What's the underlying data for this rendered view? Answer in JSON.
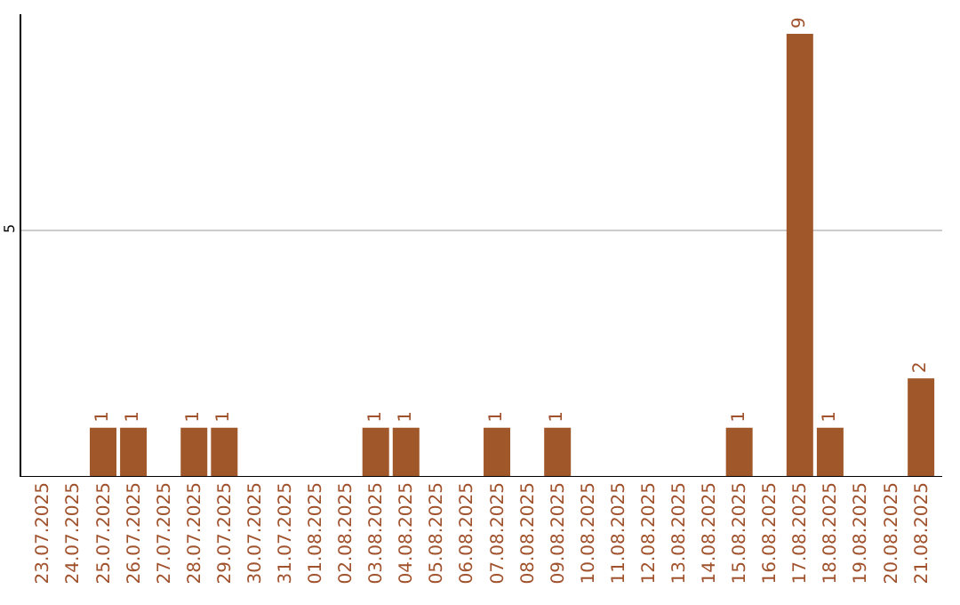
{
  "chart_data": {
    "type": "bar",
    "categories": [
      "23.07.2025",
      "24.07.2025",
      "25.07.2025",
      "26.07.2025",
      "27.07.2025",
      "28.07.2025",
      "29.07.2025",
      "30.07.2025",
      "31.07.2025",
      "01.08.2025",
      "02.08.2025",
      "03.08.2025",
      "04.08.2025",
      "05.08.2025",
      "06.08.2025",
      "07.08.2025",
      "08.08.2025",
      "09.08.2025",
      "10.08.2025",
      "11.08.2025",
      "12.08.2025",
      "13.08.2025",
      "14.08.2025",
      "15.08.2025",
      "16.08.2025",
      "17.08.2025",
      "18.08.2025",
      "19.08.2025",
      "20.08.2025",
      "21.08.2025"
    ],
    "values": [
      0,
      0,
      1,
      1,
      0,
      1,
      1,
      0,
      0,
      0,
      0,
      1,
      1,
      0,
      0,
      1,
      0,
      1,
      0,
      0,
      0,
      0,
      0,
      1,
      0,
      9,
      1,
      0,
      0,
      2
    ],
    "value_labels": [
      null,
      null,
      "1",
      "1",
      null,
      "1",
      "1",
      null,
      null,
      null,
      null,
      "1",
      "1",
      null,
      null,
      "1",
      null,
      "1",
      null,
      null,
      null,
      null,
      null,
      "1",
      null,
      "9",
      "1",
      null,
      null,
      "2"
    ],
    "color": "#a0582a",
    "ylim": [
      0,
      9.4
    ],
    "yticks": [
      5
    ],
    "grid": "y"
  }
}
